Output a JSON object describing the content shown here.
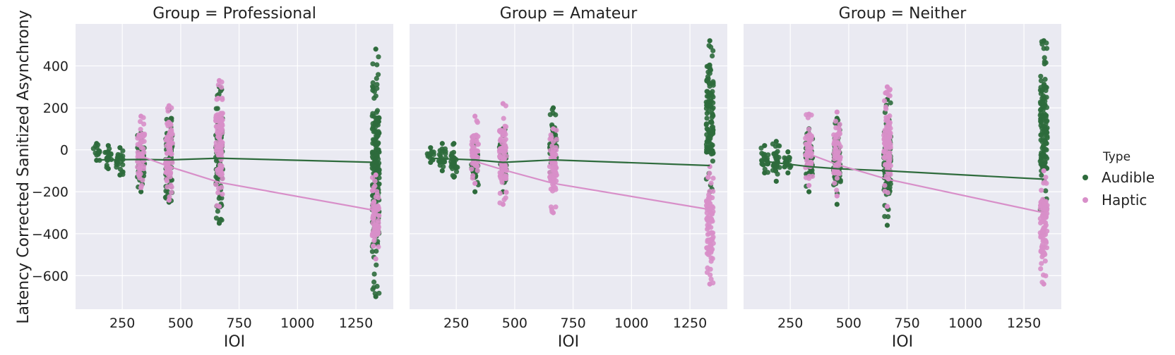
{
  "figure": {
    "ylabel": "Latency Corrected Sanitized Asynchrony",
    "legend": {
      "title": "Type",
      "placement": "right",
      "entries": [
        {
          "label": "Audible",
          "color": "#2e6b3c"
        },
        {
          "label": "Haptic",
          "color": "#d88fc9"
        }
      ]
    }
  },
  "chart_data": {
    "type": "scatter",
    "panel_titles": [
      "Group = Professional",
      "Group = Amateur",
      "Group = Neither"
    ],
    "xlabel": "IOI",
    "ylabel": "Latency Corrected Sanitized Asynchrony",
    "xlim": [
      50,
      1410
    ],
    "ylim": [
      -760,
      600
    ],
    "xticks": [
      250,
      500,
      750,
      1000,
      1250
    ],
    "yticks": [
      -600,
      -400,
      -200,
      0,
      200,
      400
    ],
    "grid": true,
    "series": [
      {
        "name": "Audible",
        "color": "#2e6b3c",
        "panels": [
          {
            "fit": [
              [
                140,
                -48
              ],
              [
                330,
                -46
              ],
              [
                450,
                -48
              ],
              [
                665,
                -40
              ],
              [
                1335,
                -60
              ]
            ],
            "bands": [
              {
                "x": 140,
                "y_min": -50,
                "y_max": 30
              },
              {
                "x": 190,
                "y_min": -90,
                "y_max": 20
              },
              {
                "x": 240,
                "y_min": -120,
                "y_max": 10
              },
              {
                "x": 330,
                "y_min": -200,
                "y_max": 80
              },
              {
                "x": 450,
                "y_min": -250,
                "y_max": 190
              },
              {
                "x": 665,
                "y_min": -350,
                "y_max": 300
              },
              {
                "x": 1335,
                "y_min": -700,
                "y_max": 480
              }
            ]
          },
          {
            "fit": [
              [
                140,
                -40
              ],
              [
                330,
                -48
              ],
              [
                450,
                -60
              ],
              [
                665,
                -48
              ],
              [
                1335,
                -75
              ]
            ],
            "bands": [
              {
                "x": 140,
                "y_min": -60,
                "y_max": 10
              },
              {
                "x": 190,
                "y_min": -100,
                "y_max": 30
              },
              {
                "x": 240,
                "y_min": -130,
                "y_max": 30
              },
              {
                "x": 330,
                "y_min": -200,
                "y_max": 60
              },
              {
                "x": 450,
                "y_min": -200,
                "y_max": 100
              },
              {
                "x": 665,
                "y_min": -120,
                "y_max": 200
              },
              {
                "x": 1335,
                "y_min": -200,
                "y_max": 520
              }
            ]
          },
          {
            "fit": [
              [
                140,
                -55
              ],
              [
                330,
                -80
              ],
              [
                450,
                -90
              ],
              [
                665,
                -100
              ],
              [
                1335,
                -140
              ]
            ],
            "bands": [
              {
                "x": 140,
                "y_min": -110,
                "y_max": 20
              },
              {
                "x": 190,
                "y_min": -150,
                "y_max": 40
              },
              {
                "x": 240,
                "y_min": -110,
                "y_max": -10
              },
              {
                "x": 330,
                "y_min": -200,
                "y_max": 100
              },
              {
                "x": 450,
                "y_min": -260,
                "y_max": 150
              },
              {
                "x": 665,
                "y_min": -360,
                "y_max": 240
              },
              {
                "x": 1335,
                "y_min": -300,
                "y_max": 520
              }
            ]
          }
        ]
      },
      {
        "name": "Haptic",
        "color": "#d88fc9",
        "panels": [
          {
            "fit": [
              [
                330,
                -30
              ],
              [
                450,
                -80
              ],
              [
                665,
                -155
              ],
              [
                1335,
                -290
              ]
            ],
            "bands": [
              {
                "x": 330,
                "y_min": -180,
                "y_max": 160
              },
              {
                "x": 450,
                "y_min": -240,
                "y_max": 210
              },
              {
                "x": 665,
                "y_min": -270,
                "y_max": 330
              },
              {
                "x": 1335,
                "y_min": -520,
                "y_max": -120
              }
            ]
          },
          {
            "fit": [
              [
                330,
                -55
              ],
              [
                450,
                -95
              ],
              [
                665,
                -160
              ],
              [
                1335,
                -285
              ]
            ],
            "bands": [
              {
                "x": 330,
                "y_min": -160,
                "y_max": 160
              },
              {
                "x": 450,
                "y_min": -260,
                "y_max": 220
              },
              {
                "x": 665,
                "y_min": -300,
                "y_max": 100
              },
              {
                "x": 1335,
                "y_min": -640,
                "y_max": -80
              }
            ]
          },
          {
            "fit": [
              [
                330,
                -20
              ],
              [
                450,
                -70
              ],
              [
                665,
                -140
              ],
              [
                1335,
                -300
              ]
            ],
            "bands": [
              {
                "x": 330,
                "y_min": -170,
                "y_max": 170
              },
              {
                "x": 450,
                "y_min": -220,
                "y_max": 180
              },
              {
                "x": 665,
                "y_min": -270,
                "y_max": 300
              },
              {
                "x": 1335,
                "y_min": -640,
                "y_max": -100
              }
            ]
          }
        ]
      }
    ]
  }
}
